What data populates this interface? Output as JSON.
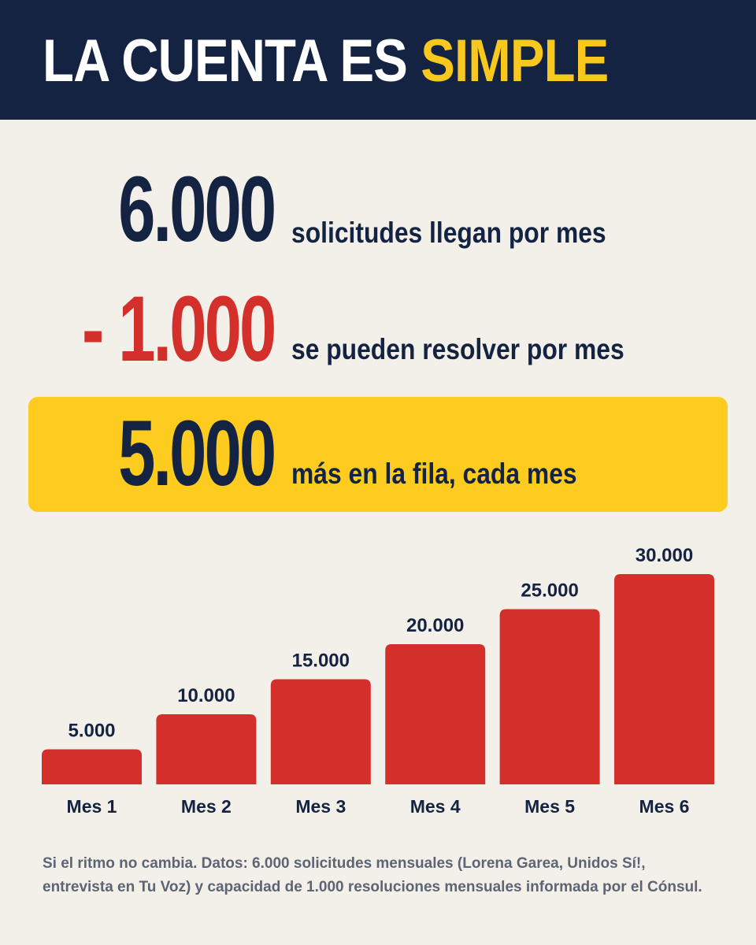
{
  "header": {
    "title_main": "LA CUENTA ES",
    "title_accent": "SIMPLE"
  },
  "rows": [
    {
      "number": "6.000",
      "text": "solicitudes llegan por mes"
    },
    {
      "number": "- 1.000",
      "text": "se pueden resolver por mes"
    },
    {
      "number": "5.000",
      "text": "más en la fila, cada mes"
    }
  ],
  "colors": {
    "navy": "#132341",
    "yellow": "#fdcc1e",
    "red": "#d3302b",
    "background": "#f3f0ea"
  },
  "chart_data": {
    "type": "bar",
    "categories": [
      "Mes 1",
      "Mes 2",
      "Mes 3",
      "Mes 4",
      "Mes 5",
      "Mes 6"
    ],
    "values": [
      5000,
      10000,
      15000,
      20000,
      25000,
      30000
    ],
    "value_labels": [
      "5.000",
      "10.000",
      "15.000",
      "20.000",
      "25.000",
      "30.000"
    ],
    "title": "",
    "xlabel": "",
    "ylabel": "",
    "ylim": [
      0,
      30000
    ],
    "grid": false
  },
  "footnote": "Si el ritmo no cambia. Datos: 6.000 solicitudes mensuales (Lorena Garea, Unidos Sí!, entrevista en Tu Voz) y capacidad de 1.000 resoluciones mensuales informada por el Cónsul."
}
